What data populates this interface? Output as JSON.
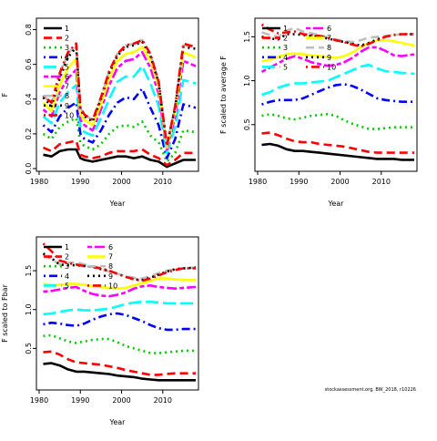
{
  "credit": "stockassessment.org, BW_2018, r10226",
  "chart_data": [
    {
      "type": "line",
      "xlabel": "Year",
      "ylabel": "F",
      "xlim": [
        1980,
        2018
      ],
      "ylim": [
        0,
        0.85
      ],
      "xticks": [
        1980,
        1990,
        2000,
        2010
      ],
      "yticks": [
        0.0,
        0.2,
        0.4,
        0.6,
        0.8
      ],
      "ytick_labels": [
        "0.0",
        "0.2",
        "0.4",
        "0.6",
        "0.8"
      ],
      "legend_position": "top-left",
      "legend_columns": 1,
      "legend_entries": [
        "1",
        "2",
        "3",
        "4",
        "5",
        "6",
        "7",
        "8",
        "9",
        "10"
      ],
      "years": [
        1981,
        1983,
        1985,
        1987,
        1989,
        1990,
        1991,
        1993,
        1995,
        1997,
        1999,
        2001,
        2003,
        2005,
        2007,
        2009,
        2011,
        2013,
        2015,
        2018
      ],
      "series": [
        {
          "name": "1",
          "color": "#000000",
          "dash": "solid",
          "values": [
            0.08,
            0.07,
            0.1,
            0.11,
            0.11,
            0.06,
            0.05,
            0.04,
            0.05,
            0.06,
            0.07,
            0.07,
            0.06,
            0.07,
            0.05,
            0.04,
            0.01,
            0.03,
            0.05,
            0.05
          ]
        },
        {
          "name": "2",
          "color": "#ff0000",
          "dash": "dashed",
          "values": [
            0.12,
            0.1,
            0.14,
            0.15,
            0.16,
            0.08,
            0.07,
            0.06,
            0.07,
            0.09,
            0.1,
            0.1,
            0.1,
            0.11,
            0.08,
            0.06,
            0.02,
            0.05,
            0.09,
            0.09
          ]
        },
        {
          "name": "3",
          "color": "#00cc00",
          "dash": "dotted",
          "values": [
            0.2,
            0.17,
            0.24,
            0.27,
            0.29,
            0.15,
            0.13,
            0.11,
            0.14,
            0.2,
            0.24,
            0.25,
            0.24,
            0.27,
            0.19,
            0.15,
            0.04,
            0.09,
            0.22,
            0.21
          ]
        },
        {
          "name": "4",
          "color": "#0000ff",
          "dash": "dotdash",
          "values": [
            0.25,
            0.21,
            0.3,
            0.35,
            0.38,
            0.2,
            0.17,
            0.15,
            0.22,
            0.31,
            0.38,
            0.41,
            0.4,
            0.46,
            0.35,
            0.25,
            0.06,
            0.17,
            0.37,
            0.35
          ]
        },
        {
          "name": "5",
          "color": "#00ffff",
          "dash": "longdash",
          "values": [
            0.3,
            0.26,
            0.38,
            0.44,
            0.48,
            0.24,
            0.21,
            0.19,
            0.29,
            0.4,
            0.5,
            0.53,
            0.53,
            0.59,
            0.49,
            0.36,
            0.09,
            0.24,
            0.51,
            0.49
          ]
        },
        {
          "name": "6",
          "color": "#ff00ff",
          "dash": "twodash",
          "values": [
            0.34,
            0.3,
            0.44,
            0.52,
            0.57,
            0.28,
            0.25,
            0.22,
            0.34,
            0.48,
            0.58,
            0.62,
            0.63,
            0.67,
            0.58,
            0.43,
            0.11,
            0.3,
            0.62,
            0.59
          ]
        },
        {
          "name": "7",
          "color": "#ffff00",
          "dash": "solid",
          "values": [
            0.38,
            0.33,
            0.48,
            0.58,
            0.63,
            0.31,
            0.28,
            0.25,
            0.37,
            0.52,
            0.62,
            0.66,
            0.67,
            0.7,
            0.62,
            0.47,
            0.12,
            0.33,
            0.67,
            0.64
          ]
        },
        {
          "name": "8",
          "color": "#bebebe",
          "dash": "dashed",
          "values": [
            0.42,
            0.37,
            0.54,
            0.66,
            0.72,
            0.35,
            0.31,
            0.28,
            0.41,
            0.56,
            0.66,
            0.71,
            0.72,
            0.74,
            0.66,
            0.5,
            0.13,
            0.36,
            0.71,
            0.7
          ]
        },
        {
          "name": "9",
          "color": "#000000",
          "dash": "dotted",
          "values": [
            0.41,
            0.36,
            0.52,
            0.64,
            0.7,
            0.34,
            0.3,
            0.27,
            0.4,
            0.55,
            0.65,
            0.7,
            0.71,
            0.73,
            0.65,
            0.49,
            0.13,
            0.35,
            0.7,
            0.69
          ]
        },
        {
          "name": "10",
          "color": "#ff0000",
          "dash": "dotdash",
          "values": [
            0.42,
            0.38,
            0.55,
            0.67,
            0.72,
            0.35,
            0.31,
            0.28,
            0.41,
            0.56,
            0.66,
            0.71,
            0.72,
            0.74,
            0.66,
            0.5,
            0.13,
            0.36,
            0.72,
            0.7
          ]
        }
      ]
    },
    {
      "type": "line",
      "xlabel": "Year",
      "ylabel": "F scaled to average F",
      "xlim": [
        1980,
        2018
      ],
      "ylim": [
        0.0,
        1.68
      ],
      "xticks": [
        1980,
        1990,
        2000,
        2010
      ],
      "yticks": [
        0.5,
        1.0,
        1.5
      ],
      "ytick_labels": [
        "0.5",
        "1.0",
        "1.5"
      ],
      "legend_position": "top-left",
      "legend_columns": 2,
      "legend_entries": [
        "1",
        "2",
        "3",
        "4",
        "5",
        "6",
        "7",
        "8",
        "9",
        "10"
      ],
      "years": [
        1981,
        1983,
        1985,
        1987,
        1989,
        1991,
        1993,
        1995,
        1997,
        1999,
        2001,
        2003,
        2005,
        2007,
        2009,
        2011,
        2013,
        2015,
        2018
      ],
      "series": [
        {
          "name": "1",
          "color": "#000000",
          "dash": "solid",
          "values": [
            0.27,
            0.28,
            0.26,
            0.22,
            0.2,
            0.2,
            0.19,
            0.18,
            0.17,
            0.16,
            0.15,
            0.14,
            0.13,
            0.12,
            0.11,
            0.11,
            0.11,
            0.1,
            0.1
          ]
        },
        {
          "name": "2",
          "color": "#ff0000",
          "dash": "dashed",
          "values": [
            0.4,
            0.41,
            0.38,
            0.34,
            0.31,
            0.3,
            0.3,
            0.28,
            0.27,
            0.26,
            0.25,
            0.23,
            0.21,
            0.19,
            0.18,
            0.18,
            0.18,
            0.18,
            0.18
          ]
        },
        {
          "name": "3",
          "color": "#00cc00",
          "dash": "dotted",
          "values": [
            0.6,
            0.62,
            0.6,
            0.57,
            0.56,
            0.58,
            0.6,
            0.61,
            0.62,
            0.6,
            0.55,
            0.51,
            0.48,
            0.45,
            0.45,
            0.46,
            0.47,
            0.47,
            0.47
          ]
        },
        {
          "name": "4",
          "color": "#0000ff",
          "dash": "dotdash",
          "values": [
            0.73,
            0.76,
            0.78,
            0.78,
            0.78,
            0.8,
            0.84,
            0.88,
            0.92,
            0.95,
            0.96,
            0.94,
            0.9,
            0.85,
            0.8,
            0.78,
            0.77,
            0.76,
            0.76
          ]
        },
        {
          "name": "5",
          "color": "#00ffff",
          "dash": "longdash",
          "values": [
            0.84,
            0.87,
            0.92,
            0.95,
            0.97,
            0.97,
            0.98,
            0.99,
            1.0,
            1.04,
            1.08,
            1.12,
            1.16,
            1.18,
            1.14,
            1.11,
            1.1,
            1.09,
            1.08
          ]
        },
        {
          "name": "6",
          "color": "#ff00ff",
          "dash": "twodash",
          "values": [
            1.1,
            1.15,
            1.2,
            1.25,
            1.28,
            1.25,
            1.21,
            1.19,
            1.17,
            1.18,
            1.21,
            1.26,
            1.33,
            1.38,
            1.38,
            1.34,
            1.29,
            1.28,
            1.3
          ]
        },
        {
          "name": "7",
          "color": "#ffff00",
          "dash": "solid",
          "values": [
            1.22,
            1.24,
            1.27,
            1.3,
            1.31,
            1.3,
            1.29,
            1.28,
            1.27,
            1.26,
            1.28,
            1.32,
            1.38,
            1.43,
            1.46,
            1.46,
            1.45,
            1.43,
            1.4
          ]
        },
        {
          "name": "8",
          "color": "#bebebe",
          "dash": "dashed",
          "values": [
            1.55,
            1.52,
            1.5,
            1.57,
            1.6,
            1.56,
            1.54,
            1.52,
            1.49,
            1.47,
            1.45,
            1.44,
            1.46,
            1.49,
            1.5,
            1.51,
            1.52,
            1.53,
            1.53
          ]
        },
        {
          "name": "9",
          "color": "#000000",
          "dash": "dotted",
          "values": [
            1.5,
            1.48,
            1.47,
            1.53,
            1.53,
            1.52,
            1.51,
            1.5,
            1.48,
            1.46,
            1.44,
            1.42,
            1.4,
            1.43,
            1.47,
            1.5,
            1.52,
            1.53,
            1.53
          ]
        },
        {
          "name": "10",
          "color": "#ff0000",
          "dash": "dotdash",
          "values": [
            1.64,
            1.58,
            1.54,
            1.55,
            1.56,
            1.53,
            1.52,
            1.51,
            1.49,
            1.46,
            1.44,
            1.41,
            1.39,
            1.42,
            1.46,
            1.5,
            1.52,
            1.53,
            1.53
          ]
        }
      ]
    },
    {
      "type": "line",
      "xlabel": "Year",
      "ylabel": "F scaled to Fbar",
      "xlim": [
        1980,
        2018
      ],
      "ylim": [
        0.0,
        1.9
      ],
      "xticks": [
        1980,
        1990,
        2000,
        2010
      ],
      "yticks": [
        0.5,
        1.0,
        1.5
      ],
      "ytick_labels": [
        "0.5",
        "1.0",
        "1.5"
      ],
      "legend_position": "top-left",
      "legend_columns": 2,
      "legend_entries": [
        "1",
        "2",
        "3",
        "4",
        "5",
        "6",
        "7",
        "8",
        "9",
        "10"
      ],
      "years": [
        1981,
        1983,
        1985,
        1987,
        1989,
        1991,
        1993,
        1995,
        1997,
        1999,
        2001,
        2003,
        2005,
        2007,
        2009,
        2011,
        2013,
        2015,
        2018
      ],
      "series": [
        {
          "name": "1",
          "color": "#000000",
          "dash": "solid",
          "values": [
            0.3,
            0.31,
            0.28,
            0.23,
            0.2,
            0.2,
            0.19,
            0.18,
            0.17,
            0.15,
            0.14,
            0.13,
            0.11,
            0.1,
            0.09,
            0.09,
            0.09,
            0.09,
            0.09
          ]
        },
        {
          "name": "2",
          "color": "#ff0000",
          "dash": "dashed",
          "values": [
            0.45,
            0.46,
            0.42,
            0.36,
            0.32,
            0.31,
            0.3,
            0.29,
            0.27,
            0.25,
            0.22,
            0.2,
            0.18,
            0.16,
            0.16,
            0.17,
            0.18,
            0.18,
            0.18
          ]
        },
        {
          "name": "3",
          "color": "#00cc00",
          "dash": "dotted",
          "values": [
            0.66,
            0.67,
            0.63,
            0.59,
            0.57,
            0.59,
            0.61,
            0.62,
            0.62,
            0.58,
            0.53,
            0.5,
            0.47,
            0.44,
            0.44,
            0.45,
            0.46,
            0.47,
            0.47
          ]
        },
        {
          "name": "4",
          "color": "#0000ff",
          "dash": "dotdash",
          "values": [
            0.81,
            0.83,
            0.82,
            0.8,
            0.79,
            0.82,
            0.87,
            0.91,
            0.94,
            0.95,
            0.93,
            0.89,
            0.85,
            0.8,
            0.76,
            0.74,
            0.74,
            0.75,
            0.75
          ]
        },
        {
          "name": "5",
          "color": "#00ffff",
          "dash": "longdash",
          "values": [
            0.94,
            0.95,
            0.97,
            0.99,
            1.0,
            0.99,
            0.99,
            1.0,
            1.01,
            1.04,
            1.07,
            1.09,
            1.1,
            1.1,
            1.09,
            1.08,
            1.08,
            1.08,
            1.08
          ]
        },
        {
          "name": "6",
          "color": "#ff00ff",
          "dash": "twodash",
          "values": [
            1.23,
            1.24,
            1.26,
            1.28,
            1.29,
            1.24,
            1.2,
            1.18,
            1.17,
            1.19,
            1.22,
            1.27,
            1.3,
            1.31,
            1.29,
            1.28,
            1.27,
            1.28,
            1.29
          ]
        },
        {
          "name": "7",
          "color": "#ffff00",
          "dash": "solid",
          "values": [
            1.33,
            1.32,
            1.32,
            1.33,
            1.33,
            1.32,
            1.3,
            1.29,
            1.28,
            1.27,
            1.28,
            1.31,
            1.34,
            1.37,
            1.4,
            1.4,
            1.39,
            1.38,
            1.38
          ]
        },
        {
          "name": "8",
          "color": "#bebebe",
          "dash": "dashed",
          "values": [
            1.7,
            1.65,
            1.58,
            1.6,
            1.61,
            1.58,
            1.55,
            1.52,
            1.49,
            1.46,
            1.43,
            1.41,
            1.4,
            1.43,
            1.47,
            1.5,
            1.52,
            1.53,
            1.54
          ]
        },
        {
          "name": "9",
          "color": "#000000",
          "dash": "dotted",
          "values": [
            1.72,
            1.66,
            1.58,
            1.57,
            1.57,
            1.56,
            1.55,
            1.52,
            1.5,
            1.46,
            1.42,
            1.39,
            1.38,
            1.41,
            1.45,
            1.49,
            1.52,
            1.53,
            1.54
          ]
        },
        {
          "name": "10",
          "color": "#ff0000",
          "dash": "dotdash",
          "values": [
            1.85,
            1.75,
            1.63,
            1.6,
            1.58,
            1.56,
            1.55,
            1.53,
            1.5,
            1.46,
            1.42,
            1.39,
            1.37,
            1.4,
            1.44,
            1.48,
            1.51,
            1.53,
            1.53
          ]
        }
      ]
    }
  ]
}
